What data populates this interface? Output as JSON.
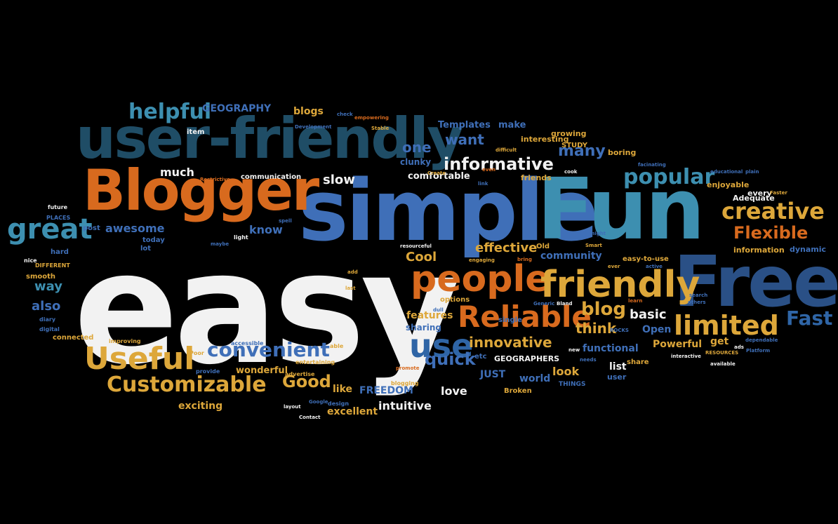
{
  "words": [
    {
      "text": "easy",
      "color": "#f2f2f2",
      "size": 220
    },
    {
      "text": "simple",
      "color": "#3f6fb8",
      "size": 120
    },
    {
      "text": "Fun",
      "color": "#3d8fb0",
      "size": 120
    },
    {
      "text": "Free",
      "color": "#2a5086",
      "size": 100
    },
    {
      "text": "user-friendly",
      "color": "#1f4d66",
      "size": 80
    },
    {
      "text": "Blogger",
      "color": "#d86a1e",
      "size": 80
    },
    {
      "text": "people",
      "color": "#d86a1e",
      "size": 52
    },
    {
      "text": "friendly",
      "color": "#dda73a",
      "size": 52
    },
    {
      "text": "Reliable",
      "color": "#d86a1e",
      "size": 42
    },
    {
      "text": "use",
      "color": "#2f65a6",
      "size": 46
    },
    {
      "text": "Useful",
      "color": "#dda73a",
      "size": 44
    },
    {
      "text": "great",
      "color": "#3d8fb0",
      "size": 40
    },
    {
      "text": "limited",
      "color": "#dda73a",
      "size": 38
    },
    {
      "text": "creative",
      "color": "#dda73a",
      "size": 32
    },
    {
      "text": "helpful",
      "color": "#3d8fb0",
      "size": 30
    },
    {
      "text": "Customizable",
      "color": "#dda73a",
      "size": 30
    },
    {
      "text": "popular",
      "color": "#3d8fb0",
      "size": 30
    },
    {
      "text": "convenient",
      "color": "#3f6fb8",
      "size": 28
    },
    {
      "text": "informative",
      "color": "#f2f2f2",
      "size": 24
    },
    {
      "text": "Flexible",
      "color": "#d86a1e",
      "size": 24
    },
    {
      "text": "Fast",
      "color": "#2f65a6",
      "size": 28
    },
    {
      "text": "blog",
      "color": "#dda73a",
      "size": 26
    },
    {
      "text": "Good",
      "color": "#dda73a",
      "size": 24
    },
    {
      "text": "quick",
      "color": "#3f6fb8",
      "size": 24
    },
    {
      "text": "innovative",
      "color": "#dda73a",
      "size": 20
    },
    {
      "text": "many",
      "color": "#3f6fb8",
      "size": 22
    },
    {
      "text": "want",
      "color": "#3f6fb8",
      "size": 20
    },
    {
      "text": "one",
      "color": "#3f6fb8",
      "size": 20
    },
    {
      "text": "think",
      "color": "#dda73a",
      "size": 20
    },
    {
      "text": "basic",
      "color": "#f2f2f2",
      "size": 18
    },
    {
      "text": "effective",
      "color": "#dda73a",
      "size": 18
    },
    {
      "text": "community",
      "color": "#3f6fb8",
      "size": 14
    },
    {
      "text": "Cool",
      "color": "#dda73a",
      "size": 18
    },
    {
      "text": "slow",
      "color": "#f2f2f2",
      "size": 18
    },
    {
      "text": "much",
      "color": "#f2f2f2",
      "size": 16
    },
    {
      "text": "awesome",
      "color": "#3f6fb8",
      "size": 16
    },
    {
      "text": "know",
      "color": "#3f6fb8",
      "size": 16
    },
    {
      "text": "also",
      "color": "#3f6fb8",
      "size": 18
    },
    {
      "text": "way",
      "color": "#3d8fb0",
      "size": 18
    },
    {
      "text": "GEOGRAPHY",
      "color": "#3f6fb8",
      "size": 14
    },
    {
      "text": "blogs",
      "color": "#dda73a",
      "size": 14
    },
    {
      "text": "intuitive",
      "color": "#f2f2f2",
      "size": 16
    },
    {
      "text": "love",
      "color": "#f2f2f2",
      "size": 16
    },
    {
      "text": "excellent",
      "color": "#dda73a",
      "size": 14
    },
    {
      "text": "FREEDOM",
      "color": "#3f6fb8",
      "size": 14
    },
    {
      "text": "exciting",
      "color": "#dda73a",
      "size": 14
    },
    {
      "text": "wonderful",
      "color": "#dda73a",
      "size": 13
    },
    {
      "text": "functional",
      "color": "#3f6fb8",
      "size": 14
    },
    {
      "text": "Powerful",
      "color": "#dda73a",
      "size": 14
    },
    {
      "text": "get",
      "color": "#dda73a",
      "size": 14
    },
    {
      "text": "Open",
      "color": "#3f6fb8",
      "size": 14
    },
    {
      "text": "world",
      "color": "#3f6fb8",
      "size": 14
    },
    {
      "text": "look",
      "color": "#dda73a",
      "size": 16
    },
    {
      "text": "list",
      "color": "#f2f2f2",
      "size": 14
    },
    {
      "text": "JUST",
      "color": "#3f6fb8",
      "size": 14
    },
    {
      "text": "GEOGRAPHERS",
      "color": "#f2f2f2",
      "size": 11
    },
    {
      "text": "features",
      "color": "#dda73a",
      "size": 14
    },
    {
      "text": "sharing",
      "color": "#3f6fb8",
      "size": 12
    },
    {
      "text": "like",
      "color": "#dda73a",
      "size": 14
    },
    {
      "text": "comfortable",
      "color": "#f2f2f2",
      "size": 13
    },
    {
      "text": "Templates",
      "color": "#3f6fb8",
      "size": 13
    },
    {
      "text": "make",
      "color": "#3f6fb8",
      "size": 13
    },
    {
      "text": "clunky",
      "color": "#3f6fb8",
      "size": 12
    },
    {
      "text": "friends",
      "color": "#dda73a",
      "size": 11
    },
    {
      "text": "interesting",
      "color": "#dda73a",
      "size": 11
    },
    {
      "text": "growing",
      "color": "#dda73a",
      "size": 11
    },
    {
      "text": "STUDY",
      "color": "#dda73a",
      "size": 10
    },
    {
      "text": "boring",
      "color": "#dda73a",
      "size": 11
    },
    {
      "text": "enjoyable",
      "color": "#dda73a",
      "size": 11
    },
    {
      "text": "Adequate",
      "color": "#f2f2f2",
      "size": 11
    },
    {
      "text": "every",
      "color": "#f2f2f2",
      "size": 11
    },
    {
      "text": "information",
      "color": "#dda73a",
      "size": 11
    },
    {
      "text": "dynamic",
      "color": "#3f6fb8",
      "size": 11
    },
    {
      "text": "easy-to-use",
      "color": "#dda73a",
      "size": 10
    },
    {
      "text": "options",
      "color": "#dda73a",
      "size": 10
    },
    {
      "text": "share",
      "color": "#dda73a",
      "size": 10
    },
    {
      "text": "user",
      "color": "#3f6fb8",
      "size": 11
    },
    {
      "text": "communication",
      "color": "#f2f2f2",
      "size": 10
    },
    {
      "text": "today",
      "color": "#3f6fb8",
      "size": 10
    },
    {
      "text": "post",
      "color": "#3f6fb8",
      "size": 10
    },
    {
      "text": "Old",
      "color": "#dda73a",
      "size": 10
    },
    {
      "text": "hard",
      "color": "#3f6fb8",
      "size": 10
    },
    {
      "text": "lot",
      "color": "#3f6fb8",
      "size": 10
    },
    {
      "text": "item",
      "color": "#f2f2f2",
      "size": 10
    },
    {
      "text": "etc",
      "color": "#3f6fb8",
      "size": 10
    },
    {
      "text": "Broken",
      "color": "#dda73a",
      "size": 10
    },
    {
      "text": "THINGS",
      "color": "#3f6fb8",
      "size": 9
    },
    {
      "text": "connected",
      "color": "#dda73a",
      "size": 10
    },
    {
      "text": "smooth",
      "color": "#dda73a",
      "size": 10
    },
    {
      "text": "DIFFERENT",
      "color": "#dda73a",
      "size": 8
    },
    {
      "text": "PLACES",
      "color": "#3f6fb8",
      "size": 8
    },
    {
      "text": "future",
      "color": "#f2f2f2",
      "size": 8
    },
    {
      "text": "nice",
      "color": "#f2f2f2",
      "size": 8
    },
    {
      "text": "diary",
      "color": "#3f6fb8",
      "size": 8
    },
    {
      "text": "digital",
      "color": "#3f6fb8",
      "size": 8
    },
    {
      "text": "improving",
      "color": "#dda73a",
      "size": 8
    },
    {
      "text": "Poor",
      "color": "#dda73a",
      "size": 8
    },
    {
      "text": "provide",
      "color": "#3f6fb8",
      "size": 8
    },
    {
      "text": "accessible",
      "color": "#3f6fb8",
      "size": 8
    },
    {
      "text": "entertaining",
      "color": "#dda73a",
      "size": 8
    },
    {
      "text": "able",
      "color": "#dda73a",
      "size": 8
    },
    {
      "text": "advertise",
      "color": "#dda73a",
      "size": 8
    },
    {
      "text": "promote",
      "color": "#d86a1e",
      "size": 7
    },
    {
      "text": "blogging",
      "color": "#dda73a",
      "size": 8
    },
    {
      "text": "Google",
      "color": "#3f6fb8",
      "size": 7
    },
    {
      "text": "design",
      "color": "#3f6fb8",
      "size": 8
    },
    {
      "text": "layout",
      "color": "#f2f2f2",
      "size": 7
    },
    {
      "text": "Contact",
      "color": "#f2f2f2",
      "size": 7
    },
    {
      "text": "light",
      "color": "#f2f2f2",
      "size": 8
    },
    {
      "text": "maybe",
      "color": "#3f6fb8",
      "size": 7
    },
    {
      "text": "spell",
      "color": "#3f6fb8",
      "size": 7
    },
    {
      "text": "Restrictive",
      "color": "#d86a1e",
      "size": 7
    },
    {
      "text": "Development",
      "color": "#3f6fb8",
      "size": 7
    },
    {
      "text": "check",
      "color": "#3f6fb8",
      "size": 7
    },
    {
      "text": "empowering",
      "color": "#d86a1e",
      "size": 7
    },
    {
      "text": "Stable",
      "color": "#dda73a",
      "size": 7
    },
    {
      "text": "Create",
      "color": "#dda73a",
      "size": 7
    },
    {
      "text": "difficult",
      "color": "#dda73a",
      "size": 7
    },
    {
      "text": "link",
      "color": "#3f6fb8",
      "size": 7
    },
    {
      "text": "even",
      "color": "#d86a1e",
      "size": 7
    },
    {
      "text": "cook",
      "color": "#f2f2f2",
      "size": 7
    },
    {
      "text": "facinating",
      "color": "#3f6fb8",
      "size": 7
    },
    {
      "text": "educational",
      "color": "#3f6fb8",
      "size": 7
    },
    {
      "text": "plain",
      "color": "#3f6fb8",
      "size": 7
    },
    {
      "text": "Faster",
      "color": "#dda73a",
      "size": 7
    },
    {
      "text": "might",
      "color": "#3f6fb8",
      "size": 7
    },
    {
      "text": "Smart",
      "color": "#dda73a",
      "size": 7
    },
    {
      "text": "ever",
      "color": "#dda73a",
      "size": 7
    },
    {
      "text": "active",
      "color": "#3f6fb8",
      "size": 7
    },
    {
      "text": "search",
      "color": "#3f6fb8",
      "size": 7
    },
    {
      "text": "others",
      "color": "#3f6fb8",
      "size": 7
    },
    {
      "text": "learn",
      "color": "#d86a1e",
      "size": 7
    },
    {
      "text": "Generic",
      "color": "#3f6fb8",
      "size": 7
    },
    {
      "text": "Bland",
      "color": "#f2f2f2",
      "size": 7
    },
    {
      "text": "dull",
      "color": "#3f6fb8",
      "size": 7
    },
    {
      "text": "resourceful",
      "color": "#f2f2f2",
      "size": 7
    },
    {
      "text": "engaging",
      "color": "#dda73a",
      "size": 7
    },
    {
      "text": "bring",
      "color": "#d86a1e",
      "size": 7
    },
    {
      "text": "add",
      "color": "#dda73a",
      "size": 7
    },
    {
      "text": "last",
      "color": "#dda73a",
      "size": 7
    },
    {
      "text": "single",
      "color": "#3f6fb8",
      "size": 10
    },
    {
      "text": "ROCKS",
      "color": "#3f6fb8",
      "size": 7
    },
    {
      "text": "new",
      "color": "#f2f2f2",
      "size": 7
    },
    {
      "text": "needs",
      "color": "#3f6fb8",
      "size": 7
    },
    {
      "text": "interactive",
      "color": "#f2f2f2",
      "size": 7
    },
    {
      "text": "RESOURCES",
      "color": "#dda73a",
      "size": 7
    },
    {
      "text": "ads",
      "color": "#f2f2f2",
      "size": 7
    },
    {
      "text": "dependable",
      "color": "#3f6fb8",
      "size": 7
    },
    {
      "text": "Platform",
      "color": "#3f6fb8",
      "size": 7
    },
    {
      "text": "available",
      "color": "#f2f2f2",
      "size": 7
    }
  ]
}
